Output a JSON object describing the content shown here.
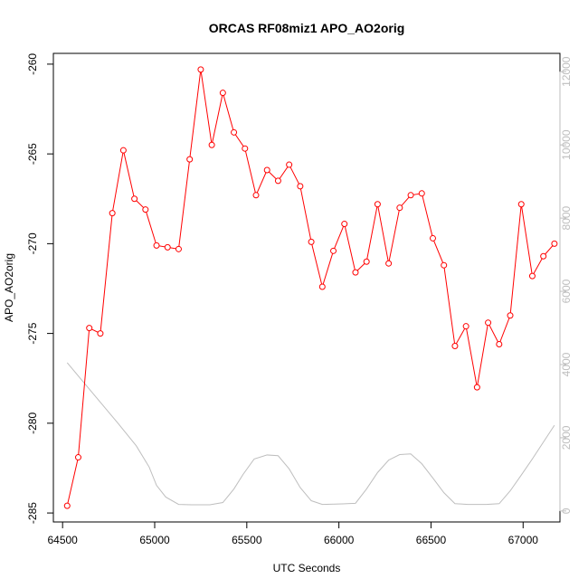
{
  "chart_data": {
    "type": "line",
    "title": "ORCAS RF08miz1 APO_AO2orig",
    "xlabel": "UTC Seconds",
    "ylabel": "APO_AO2orig",
    "ylabel_right": "",
    "xlim": [
      64450,
      67200
    ],
    "ylim": [
      -285.5,
      -259.4
    ],
    "ylim_right": [
      -300,
      12500
    ],
    "x_ticks": [
      64500,
      65000,
      65500,
      66000,
      66500,
      67000
    ],
    "x_tick_labels": [
      "64500",
      "65000",
      "65500",
      "66000",
      "66500",
      "67000"
    ],
    "y_ticks": [
      -285,
      -280,
      -275,
      -270,
      -265,
      -260
    ],
    "y_tick_labels": [
      "-285",
      "-280",
      "-275",
      "-270",
      "-265",
      "-260"
    ],
    "y_right_ticks": [
      0,
      2000,
      4000,
      6000,
      8000,
      10000,
      12000
    ],
    "y_right_tick_labels": [
      "0",
      "2000",
      "4000",
      "6000",
      "8000",
      "10000",
      "12000"
    ],
    "grid": false,
    "colors": {
      "primary": "#ff0000",
      "secondary": "#bebebe",
      "axis": "#000000",
      "right_axis": "#bebebe"
    },
    "series": [
      {
        "name": "",
        "axis": "left",
        "style": "line+circles",
        "points": [
          [
            64525,
            -284.6
          ],
          [
            64585,
            -281.9
          ],
          [
            64645,
            -274.7
          ],
          [
            64705,
            -275.0
          ],
          [
            64770,
            -268.3
          ],
          [
            64830,
            -264.8
          ],
          [
            64890,
            -267.5
          ],
          [
            64950,
            -268.1
          ],
          [
            65010,
            -270.1
          ],
          [
            65070,
            -270.2
          ],
          [
            65130,
            -270.3
          ],
          [
            65190,
            -265.3
          ],
          [
            65250,
            -260.3
          ],
          [
            65310,
            -264.5
          ],
          [
            65370,
            -261.6
          ],
          [
            65430,
            -263.8
          ],
          [
            65490,
            -264.7
          ],
          [
            65550,
            -267.3
          ],
          [
            65610,
            -265.9
          ],
          [
            65670,
            -266.5
          ],
          [
            65730,
            -265.6
          ],
          [
            65790,
            -266.8
          ],
          [
            65850,
            -269.9
          ],
          [
            65910,
            -272.4
          ],
          [
            65970,
            -270.4
          ],
          [
            66030,
            -268.9
          ],
          [
            66090,
            -271.6
          ],
          [
            66150,
            -271.0
          ],
          [
            66210,
            -267.8
          ],
          [
            66270,
            -271.1
          ],
          [
            66330,
            -268.0
          ],
          [
            66390,
            -267.3
          ],
          [
            66450,
            -267.2
          ],
          [
            66510,
            -269.7
          ],
          [
            66570,
            -271.2
          ],
          [
            66630,
            -275.7
          ],
          [
            66690,
            -274.6
          ],
          [
            66750,
            -278.0
          ],
          [
            66810,
            -274.4
          ],
          [
            66870,
            -275.6
          ],
          [
            66930,
            -274.0
          ],
          [
            66990,
            -267.8
          ],
          [
            67050,
            -271.8
          ],
          [
            67110,
            -270.7
          ],
          [
            67170,
            -270.0
          ]
        ]
      },
      {
        "name": "",
        "axis": "right",
        "style": "line",
        "points": [
          [
            64525,
            4050
          ],
          [
            64600,
            3600
          ],
          [
            64700,
            3000
          ],
          [
            64800,
            2400
          ],
          [
            64900,
            1780
          ],
          [
            64970,
            1200
          ],
          [
            65010,
            700
          ],
          [
            65060,
            380
          ],
          [
            65130,
            180
          ],
          [
            65200,
            170
          ],
          [
            65300,
            170
          ],
          [
            65370,
            230
          ],
          [
            65430,
            600
          ],
          [
            65480,
            1000
          ],
          [
            65540,
            1420
          ],
          [
            65610,
            1530
          ],
          [
            65670,
            1510
          ],
          [
            65730,
            1150
          ],
          [
            65790,
            640
          ],
          [
            65850,
            280
          ],
          [
            65910,
            180
          ],
          [
            66000,
            190
          ],
          [
            66090,
            210
          ],
          [
            66150,
            600
          ],
          [
            66210,
            1050
          ],
          [
            66270,
            1390
          ],
          [
            66330,
            1540
          ],
          [
            66390,
            1560
          ],
          [
            66450,
            1290
          ],
          [
            66510,
            900
          ],
          [
            66570,
            500
          ],
          [
            66630,
            200
          ],
          [
            66700,
            180
          ],
          [
            66800,
            180
          ],
          [
            66870,
            200
          ],
          [
            66930,
            550
          ],
          [
            66990,
            980
          ],
          [
            67050,
            1420
          ],
          [
            67110,
            1880
          ],
          [
            67170,
            2340
          ]
        ]
      }
    ]
  }
}
